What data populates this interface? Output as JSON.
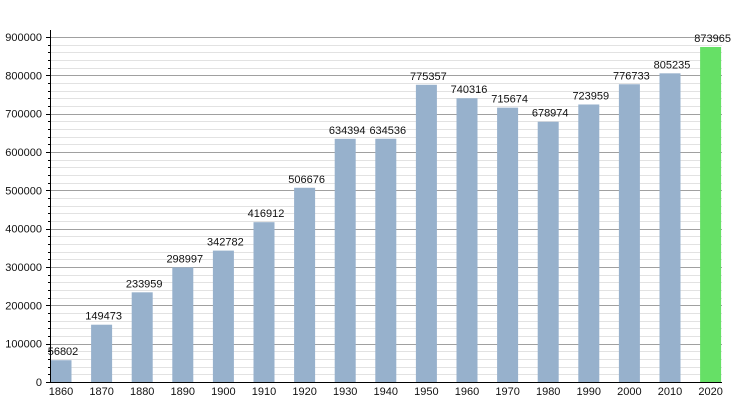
{
  "chart_data": {
    "type": "bar",
    "title": "",
    "xlabel": "",
    "ylabel": "",
    "ylim": [
      0,
      900000
    ],
    "y_major_step": 100000,
    "y_minor_step": 20000,
    "grid": true,
    "categories": [
      "1860",
      "1870",
      "1880",
      "1890",
      "1900",
      "1910",
      "1920",
      "1930",
      "1940",
      "1950",
      "1960",
      "1970",
      "1980",
      "1990",
      "2000",
      "2010",
      "2020"
    ],
    "values": [
      56802,
      149473,
      233959,
      298997,
      342782,
      416912,
      506676,
      634394,
      634536,
      775357,
      740316,
      715674,
      678974,
      723959,
      776733,
      805235,
      873965
    ],
    "value_labels": [
      "56802",
      "149473",
      "233959",
      "298997",
      "342782",
      "416912",
      "506676",
      "634394",
      "634536",
      "775357",
      "740316",
      "715674",
      "678974",
      "723959",
      "776733",
      "805235",
      "873965"
    ],
    "y_tick_labels": [
      "0",
      "100000",
      "200000",
      "300000",
      "400000",
      "500000",
      "600000",
      "700000",
      "800000",
      "900000"
    ],
    "highlight_index": 16,
    "colors": {
      "bar": "#97b1cc",
      "highlight": "#66e066",
      "major_grid": "#a0a0a0",
      "minor_grid": "#e2e2e2",
      "axis": "#000000"
    }
  }
}
